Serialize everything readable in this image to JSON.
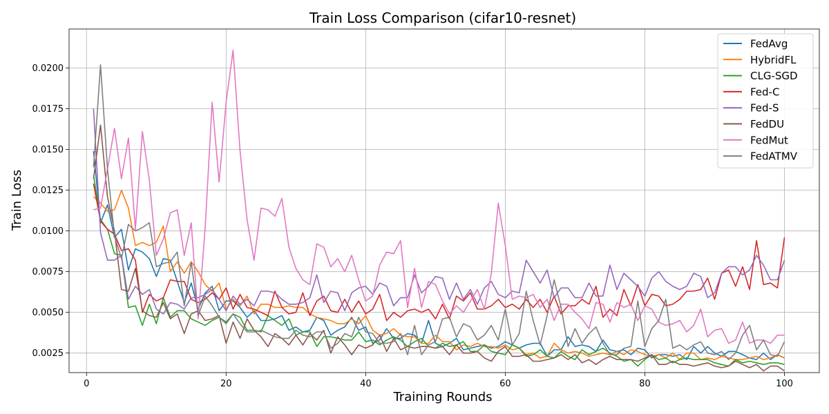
{
  "chart_data": {
    "type": "line",
    "title": "Train Loss Comparison (cifar10-resnet)",
    "xlabel": "Training Rounds",
    "ylabel": "Train Loss",
    "xlim": [
      -2.5,
      105
    ],
    "ylim": [
      0.0013,
      0.0224
    ],
    "x_ticks": [
      0,
      20,
      40,
      60,
      80,
      100
    ],
    "y_ticks": [
      0.0025,
      0.005,
      0.0075,
      0.01,
      0.0125,
      0.015,
      0.0175,
      0.02
    ],
    "x_tick_labels": [
      "0",
      "20",
      "40",
      "60",
      "80",
      "100"
    ],
    "y_tick_labels": [
      "0.0025",
      "0.0050",
      "0.0075",
      "0.0100",
      "0.0125",
      "0.0150",
      "0.0175",
      "0.0200"
    ],
    "grid": true,
    "legend_position": "top-right",
    "x_start": 1,
    "series": [
      {
        "name": "FedAvg",
        "color": "#1f77b4",
        "values": [
          0.0149,
          0.0105,
          0.0116,
          0.0096,
          0.0101,
          0.0076,
          0.0089,
          0.0087,
          0.0083,
          0.0072,
          0.0083,
          0.0082,
          0.0069,
          0.0056,
          0.0068,
          0.0052,
          0.0062,
          0.0066,
          0.0051,
          0.0057,
          0.0057,
          0.0053,
          0.0047,
          0.0051,
          0.0045,
          0.0045,
          0.0046,
          0.0048,
          0.0039,
          0.0041,
          0.0038,
          0.0039,
          0.0047,
          0.0045,
          0.0036,
          0.0039,
          0.0041,
          0.0047,
          0.0039,
          0.0041,
          0.0031,
          0.0033,
          0.004,
          0.0034,
          0.0034,
          0.0037,
          0.0036,
          0.0031,
          0.0045,
          0.0031,
          0.0029,
          0.0031,
          0.0034,
          0.0027,
          0.0028,
          0.0029,
          0.003,
          0.0028,
          0.0029,
          0.0032,
          0.003,
          0.0028,
          0.003,
          0.0031,
          0.0031,
          0.0023,
          0.0027,
          0.0027,
          0.0035,
          0.0029,
          0.003,
          0.0029,
          0.0026,
          0.0033,
          0.0027,
          0.0026,
          0.0027,
          0.0024,
          0.0028,
          0.0027,
          0.0022,
          0.0024,
          0.0024,
          0.0023,
          0.0024,
          0.0021,
          0.0029,
          0.0025,
          0.0029,
          0.0025,
          0.0023,
          0.0026,
          0.0026,
          0.0024,
          0.0022,
          0.0021,
          0.0025,
          0.0021,
          0.0024,
          0.0022
        ]
      },
      {
        "name": "HybridFL",
        "color": "#ff7f0e",
        "values": [
          0.0121,
          0.0117,
          0.0112,
          0.0113,
          0.0125,
          0.0114,
          0.0091,
          0.0093,
          0.0091,
          0.0093,
          0.0103,
          0.0075,
          0.0081,
          0.0074,
          0.0081,
          0.0075,
          0.0067,
          0.0063,
          0.0068,
          0.0052,
          0.0058,
          0.0054,
          0.006,
          0.0049,
          0.0055,
          0.0055,
          0.0053,
          0.0053,
          0.0054,
          0.0053,
          0.0053,
          0.0049,
          0.0047,
          0.0046,
          0.0045,
          0.0043,
          0.0043,
          0.0046,
          0.0043,
          0.0048,
          0.0039,
          0.0036,
          0.0037,
          0.004,
          0.0036,
          0.0035,
          0.0035,
          0.0031,
          0.0031,
          0.0036,
          0.0032,
          0.0032,
          0.0027,
          0.003,
          0.0029,
          0.0031,
          0.0029,
          0.0029,
          0.0028,
          0.003,
          0.0027,
          0.0028,
          0.0024,
          0.0025,
          0.0022,
          0.0023,
          0.0031,
          0.0027,
          0.0025,
          0.0026,
          0.0025,
          0.0023,
          0.0024,
          0.0025,
          0.0024,
          0.0026,
          0.0024,
          0.0027,
          0.0026,
          0.0024,
          0.0023,
          0.0024,
          0.0022,
          0.0025,
          0.0021,
          0.0025,
          0.0025,
          0.0021,
          0.0022,
          0.0021,
          0.0023,
          0.0022,
          0.0021,
          0.0021,
          0.0022,
          0.0023,
          0.0021,
          0.0022,
          0.0024,
          0.0022
        ]
      },
      {
        "name": "CLG-SGD",
        "color": "#2ca02c",
        "values": [
          0.0134,
          0.0107,
          0.0101,
          0.0086,
          0.0085,
          0.0053,
          0.0054,
          0.0042,
          0.0055,
          0.0043,
          0.0059,
          0.0047,
          0.0051,
          0.0051,
          0.0046,
          0.0044,
          0.0042,
          0.0045,
          0.0047,
          0.0044,
          0.0049,
          0.0047,
          0.0039,
          0.0039,
          0.0038,
          0.0048,
          0.0045,
          0.0042,
          0.0046,
          0.0036,
          0.0038,
          0.0038,
          0.0029,
          0.0035,
          0.0035,
          0.0034,
          0.0033,
          0.0033,
          0.0038,
          0.0032,
          0.0033,
          0.003,
          0.0033,
          0.0035,
          0.0033,
          0.0029,
          0.0032,
          0.0034,
          0.0029,
          0.0028,
          0.0031,
          0.0029,
          0.003,
          0.0032,
          0.0026,
          0.0026,
          0.003,
          0.0026,
          0.0025,
          0.0024,
          0.003,
          0.0028,
          0.0023,
          0.0024,
          0.0027,
          0.0023,
          0.0022,
          0.0026,
          0.0023,
          0.0021,
          0.0027,
          0.0024,
          0.0026,
          0.0028,
          0.0025,
          0.0023,
          0.002,
          0.0021,
          0.0017,
          0.0021,
          0.0024,
          0.0021,
          0.0022,
          0.0019,
          0.0021,
          0.0022,
          0.0021,
          0.0021,
          0.0021,
          0.0019,
          0.0018,
          0.0017,
          0.0021,
          0.0019,
          0.002,
          0.0019,
          0.0018,
          0.0019,
          0.0019,
          0.0018
        ]
      },
      {
        "name": "Fed-C",
        "color": "#d62728",
        "values": [
          0.0129,
          0.0106,
          0.0101,
          0.0098,
          0.0088,
          0.0089,
          0.0082,
          0.005,
          0.0061,
          0.0057,
          0.0059,
          0.007,
          0.0069,
          0.0069,
          0.0058,
          0.0056,
          0.0058,
          0.0062,
          0.0058,
          0.0065,
          0.0052,
          0.0061,
          0.0053,
          0.0052,
          0.005,
          0.0048,
          0.0063,
          0.0053,
          0.0049,
          0.005,
          0.0062,
          0.0048,
          0.0057,
          0.006,
          0.0051,
          0.005,
          0.0058,
          0.005,
          0.0057,
          0.0049,
          0.0052,
          0.0061,
          0.0045,
          0.005,
          0.0047,
          0.0051,
          0.0052,
          0.005,
          0.0052,
          0.0046,
          0.0055,
          0.0046,
          0.006,
          0.0057,
          0.0062,
          0.0052,
          0.0052,
          0.0054,
          0.0058,
          0.0053,
          0.0055,
          0.0052,
          0.0058,
          0.0053,
          0.0058,
          0.005,
          0.006,
          0.0049,
          0.0054,
          0.0054,
          0.0058,
          0.0055,
          0.0066,
          0.0047,
          0.0052,
          0.0048,
          0.0064,
          0.0054,
          0.0067,
          0.0054,
          0.0061,
          0.006,
          0.0054,
          0.0055,
          0.0058,
          0.0063,
          0.0063,
          0.0064,
          0.0071,
          0.0058,
          0.0074,
          0.0076,
          0.0066,
          0.0078,
          0.0064,
          0.0094,
          0.0067,
          0.0068,
          0.0065,
          0.0096
        ]
      },
      {
        "name": "Fed-S",
        "color": "#9467bd",
        "values": [
          0.0175,
          0.0099,
          0.0082,
          0.0082,
          0.0085,
          0.0058,
          0.0066,
          0.0061,
          0.0064,
          0.0052,
          0.0049,
          0.0056,
          0.0055,
          0.0052,
          0.0059,
          0.0059,
          0.0061,
          0.0064,
          0.0058,
          0.0051,
          0.006,
          0.0055,
          0.0058,
          0.0054,
          0.0063,
          0.0063,
          0.0062,
          0.0058,
          0.0055,
          0.0055,
          0.0056,
          0.0059,
          0.0073,
          0.0056,
          0.0063,
          0.0062,
          0.0051,
          0.0062,
          0.0065,
          0.0066,
          0.0061,
          0.0068,
          0.0066,
          0.0054,
          0.0059,
          0.0059,
          0.0073,
          0.0062,
          0.0066,
          0.0072,
          0.0071,
          0.0058,
          0.0068,
          0.0058,
          0.0064,
          0.0055,
          0.0065,
          0.0069,
          0.0061,
          0.0059,
          0.0063,
          0.0062,
          0.0082,
          0.0075,
          0.0068,
          0.0076,
          0.0059,
          0.0065,
          0.0065,
          0.0059,
          0.0059,
          0.0068,
          0.006,
          0.006,
          0.0079,
          0.0064,
          0.0074,
          0.007,
          0.0066,
          0.006,
          0.0071,
          0.0075,
          0.0069,
          0.0066,
          0.0064,
          0.0066,
          0.0074,
          0.0072,
          0.0059,
          0.0062,
          0.0074,
          0.0078,
          0.0078,
          0.0073,
          0.0076,
          0.0085,
          0.0079,
          0.007,
          0.007,
          0.0082
        ]
      },
      {
        "name": "FedDU",
        "color": "#8c564b",
        "values": [
          0.0132,
          0.0165,
          0.0121,
          0.01,
          0.0064,
          0.0063,
          0.0077,
          0.0051,
          0.0048,
          0.0047,
          0.0056,
          0.0046,
          0.0049,
          0.0037,
          0.0049,
          0.0051,
          0.0045,
          0.0046,
          0.0048,
          0.0031,
          0.0044,
          0.0034,
          0.0046,
          0.0039,
          0.0035,
          0.0029,
          0.0037,
          0.0034,
          0.003,
          0.0036,
          0.003,
          0.0037,
          0.0033,
          0.0039,
          0.0025,
          0.0035,
          0.003,
          0.0024,
          0.003,
          0.0028,
          0.003,
          0.0036,
          0.0026,
          0.0034,
          0.0027,
          0.0029,
          0.0028,
          0.0029,
          0.0029,
          0.0028,
          0.0029,
          0.0024,
          0.003,
          0.0025,
          0.0025,
          0.0026,
          0.0022,
          0.002,
          0.0026,
          0.0029,
          0.0023,
          0.0023,
          0.0024,
          0.002,
          0.002,
          0.0021,
          0.0022,
          0.0024,
          0.0021,
          0.0024,
          0.0019,
          0.0021,
          0.0018,
          0.0021,
          0.0023,
          0.0021,
          0.0021,
          0.0021,
          0.002,
          0.0022,
          0.0024,
          0.0018,
          0.0018,
          0.002,
          0.0018,
          0.0018,
          0.0017,
          0.0018,
          0.0019,
          0.0017,
          0.0016,
          0.0017,
          0.002,
          0.0018,
          0.0016,
          0.0018,
          0.0014,
          0.0017,
          0.0017,
          0.0014
        ]
      },
      {
        "name": "FedMut",
        "color": "#e377c2",
        "values": [
          0.0113,
          0.0114,
          0.0138,
          0.0163,
          0.0132,
          0.0157,
          0.0101,
          0.0161,
          0.0131,
          0.0085,
          0.0095,
          0.0111,
          0.0113,
          0.0085,
          0.0105,
          0.0046,
          0.0102,
          0.0179,
          0.013,
          0.0179,
          0.0211,
          0.0149,
          0.0107,
          0.0082,
          0.0114,
          0.0113,
          0.0109,
          0.012,
          0.009,
          0.0077,
          0.007,
          0.0067,
          0.0092,
          0.009,
          0.0078,
          0.0083,
          0.0075,
          0.0085,
          0.007,
          0.0057,
          0.006,
          0.0079,
          0.0087,
          0.0086,
          0.0094,
          0.0053,
          0.0077,
          0.0053,
          0.0069,
          0.0067,
          0.0057,
          0.0049,
          0.0054,
          0.005,
          0.0057,
          0.0064,
          0.0052,
          0.0074,
          0.0117,
          0.0091,
          0.0058,
          0.006,
          0.0059,
          0.0061,
          0.0053,
          0.0058,
          0.0045,
          0.0055,
          0.0055,
          0.005,
          0.0046,
          0.004,
          0.0056,
          0.0055,
          0.0044,
          0.0056,
          0.0053,
          0.0055,
          0.0045,
          0.0054,
          0.0052,
          0.0044,
          0.0042,
          0.0043,
          0.0045,
          0.0038,
          0.0042,
          0.0052,
          0.0035,
          0.0039,
          0.004,
          0.0031,
          0.0033,
          0.0044,
          0.0031,
          0.0033,
          0.0033,
          0.0031,
          0.0036,
          0.0036
        ]
      },
      {
        "name": "FedATMV",
        "color": "#7f7f7f",
        "values": [
          0.0139,
          0.0202,
          0.0138,
          0.0097,
          0.0083,
          0.0104,
          0.01,
          0.0102,
          0.0105,
          0.0078,
          0.008,
          0.0081,
          0.0087,
          0.0054,
          0.0081,
          0.0048,
          0.006,
          0.0054,
          0.0047,
          0.0043,
          0.0049,
          0.0043,
          0.0038,
          0.0038,
          0.0039,
          0.0037,
          0.0035,
          0.0034,
          0.0034,
          0.0039,
          0.0036,
          0.0035,
          0.0038,
          0.0038,
          0.0028,
          0.0031,
          0.0037,
          0.0035,
          0.0047,
          0.0038,
          0.0037,
          0.0031,
          0.0031,
          0.0032,
          0.0037,
          0.0024,
          0.0042,
          0.0024,
          0.003,
          0.0032,
          0.0046,
          0.0047,
          0.0035,
          0.0043,
          0.0041,
          0.0033,
          0.0036,
          0.0042,
          0.0033,
          0.0052,
          0.003,
          0.0037,
          0.0063,
          0.0045,
          0.003,
          0.0048,
          0.007,
          0.0053,
          0.0029,
          0.004,
          0.0031,
          0.0037,
          0.0041,
          0.0031,
          0.0024,
          0.0024,
          0.0028,
          0.0029,
          0.0057,
          0.0029,
          0.004,
          0.0045,
          0.0058,
          0.0028,
          0.003,
          0.0027,
          0.003,
          0.0032,
          0.0025,
          0.0024,
          0.0026,
          0.0021,
          0.0025,
          0.0036,
          0.0042,
          0.0027,
          0.0033,
          0.0024,
          0.0023,
          0.0032
        ]
      }
    ]
  }
}
